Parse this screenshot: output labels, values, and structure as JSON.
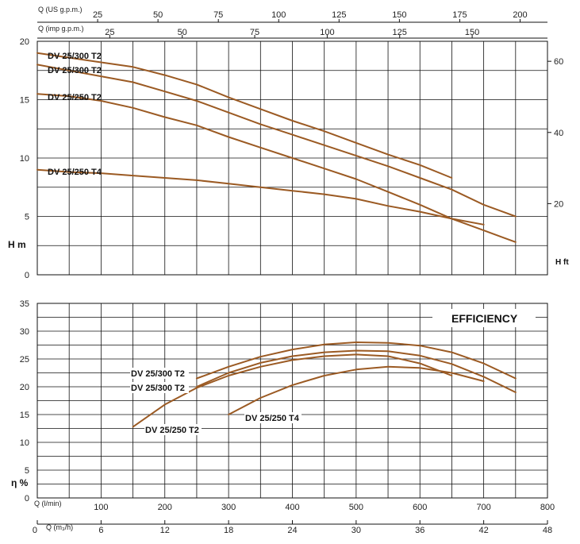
{
  "chart_data": [
    {
      "type": "line",
      "name": "head",
      "curve_color": "#9b5a23",
      "x_axis": {
        "label": "Q (l/min)",
        "range": [
          0,
          800
        ],
        "ticks": [
          "100",
          "200",
          "300",
          "400",
          "500",
          "600",
          "700",
          "800"
        ]
      },
      "top_axis_us": {
        "label": "Q (US g.p.m.)",
        "ticks": [
          25,
          50,
          75,
          100,
          125,
          150,
          175,
          200
        ]
      },
      "top_axis_imp": {
        "label": "Q (imp g.p.m.)",
        "ticks": [
          25,
          50,
          75,
          100,
          125,
          150
        ]
      },
      "y_axis": {
        "label": "H m",
        "range": [
          0,
          20
        ],
        "ticks": [
          "0",
          "5",
          "10",
          "15",
          "20"
        ]
      },
      "y2_axis": {
        "label": "H ft",
        "ticks": [
          "20",
          "40",
          "60"
        ]
      },
      "series": [
        {
          "name": "DV 25/300 T2",
          "x": [
            0,
            50,
            100,
            150,
            200,
            250,
            300,
            350,
            400,
            450,
            500,
            550,
            600,
            650
          ],
          "y": [
            19,
            18.6,
            18.2,
            17.8,
            17.1,
            16.3,
            15.2,
            14.2,
            13.2,
            12.3,
            11.3,
            10.3,
            9.4,
            8.3
          ]
        },
        {
          "name": "DV 25/300 T2",
          "x": [
            0,
            50,
            100,
            150,
            200,
            250,
            300,
            350,
            400,
            450,
            500,
            550,
            600,
            650,
            700,
            750
          ],
          "y": [
            18,
            17.5,
            17,
            16.5,
            15.7,
            14.9,
            13.9,
            12.9,
            12,
            11.1,
            10.2,
            9.3,
            8.3,
            7.3,
            6,
            5
          ]
        },
        {
          "name": "DV 25/250 T2",
          "x": [
            0,
            50,
            100,
            150,
            200,
            250,
            300,
            350,
            400,
            450,
            500,
            550,
            600,
            650,
            700,
            750
          ],
          "y": [
            15.5,
            15.3,
            14.9,
            14.3,
            13.5,
            12.8,
            11.8,
            10.9,
            10,
            9.1,
            8.2,
            7.1,
            6,
            4.8,
            3.8,
            2.8
          ]
        },
        {
          "name": "DV 25/250 T4",
          "x": [
            0,
            50,
            100,
            150,
            200,
            250,
            300,
            350,
            400,
            450,
            500,
            550,
            600,
            650,
            700
          ],
          "y": [
            9,
            8.8,
            8.7,
            8.5,
            8.3,
            8.1,
            7.8,
            7.5,
            7.2,
            6.9,
            6.5,
            5.9,
            5.4,
            4.8,
            4.3
          ]
        }
      ]
    },
    {
      "type": "line",
      "name": "efficiency",
      "title": "EFFICIENCY",
      "x_axis": {
        "label": "Q (l/min)",
        "range": [
          0,
          800
        ],
        "ticks": [
          "100",
          "200",
          "300",
          "400",
          "500",
          "600",
          "700",
          "800"
        ]
      },
      "x2_axis": {
        "label": "Q (m₃/h)",
        "ticks": [
          "0",
          "6",
          "12",
          "18",
          "24",
          "30",
          "36",
          "42",
          "48"
        ]
      },
      "y_axis": {
        "label": "η %",
        "range": [
          0,
          35
        ],
        "ticks": [
          "0",
          "5",
          "10",
          "15",
          "20",
          "25",
          "30",
          "35"
        ]
      },
      "series": [
        {
          "name": "DV 25/300 T2",
          "x": [
            250,
            300,
            350,
            400,
            450,
            500,
            550,
            600,
            650,
            700,
            750
          ],
          "y": [
            21.5,
            23.6,
            25.4,
            26.7,
            27.6,
            28,
            27.9,
            27.4,
            26.2,
            24.2,
            21.5
          ]
        },
        {
          "name": "DV 25/300 T2",
          "x": [
            250,
            300,
            350,
            400,
            450,
            500,
            550,
            600,
            650,
            700,
            750
          ],
          "y": [
            20,
            22.5,
            24.3,
            25.5,
            26.2,
            26.5,
            26.4,
            25.6,
            24.1,
            21.8,
            19
          ]
        },
        {
          "name": "DV 25/250 T2",
          "x": [
            150,
            200,
            250,
            300,
            350,
            400,
            450,
            500,
            550,
            600,
            650
          ],
          "y": [
            12.8,
            16.8,
            19.8,
            22,
            23.6,
            24.8,
            25.5,
            25.8,
            25.5,
            24.2,
            22
          ]
        },
        {
          "name": "DV 25/250 T4",
          "x": [
            300,
            350,
            400,
            450,
            500,
            550,
            600,
            650,
            700
          ],
          "y": [
            15,
            18,
            20.3,
            22,
            23.1,
            23.6,
            23.4,
            22.5,
            21
          ]
        }
      ]
    }
  ]
}
